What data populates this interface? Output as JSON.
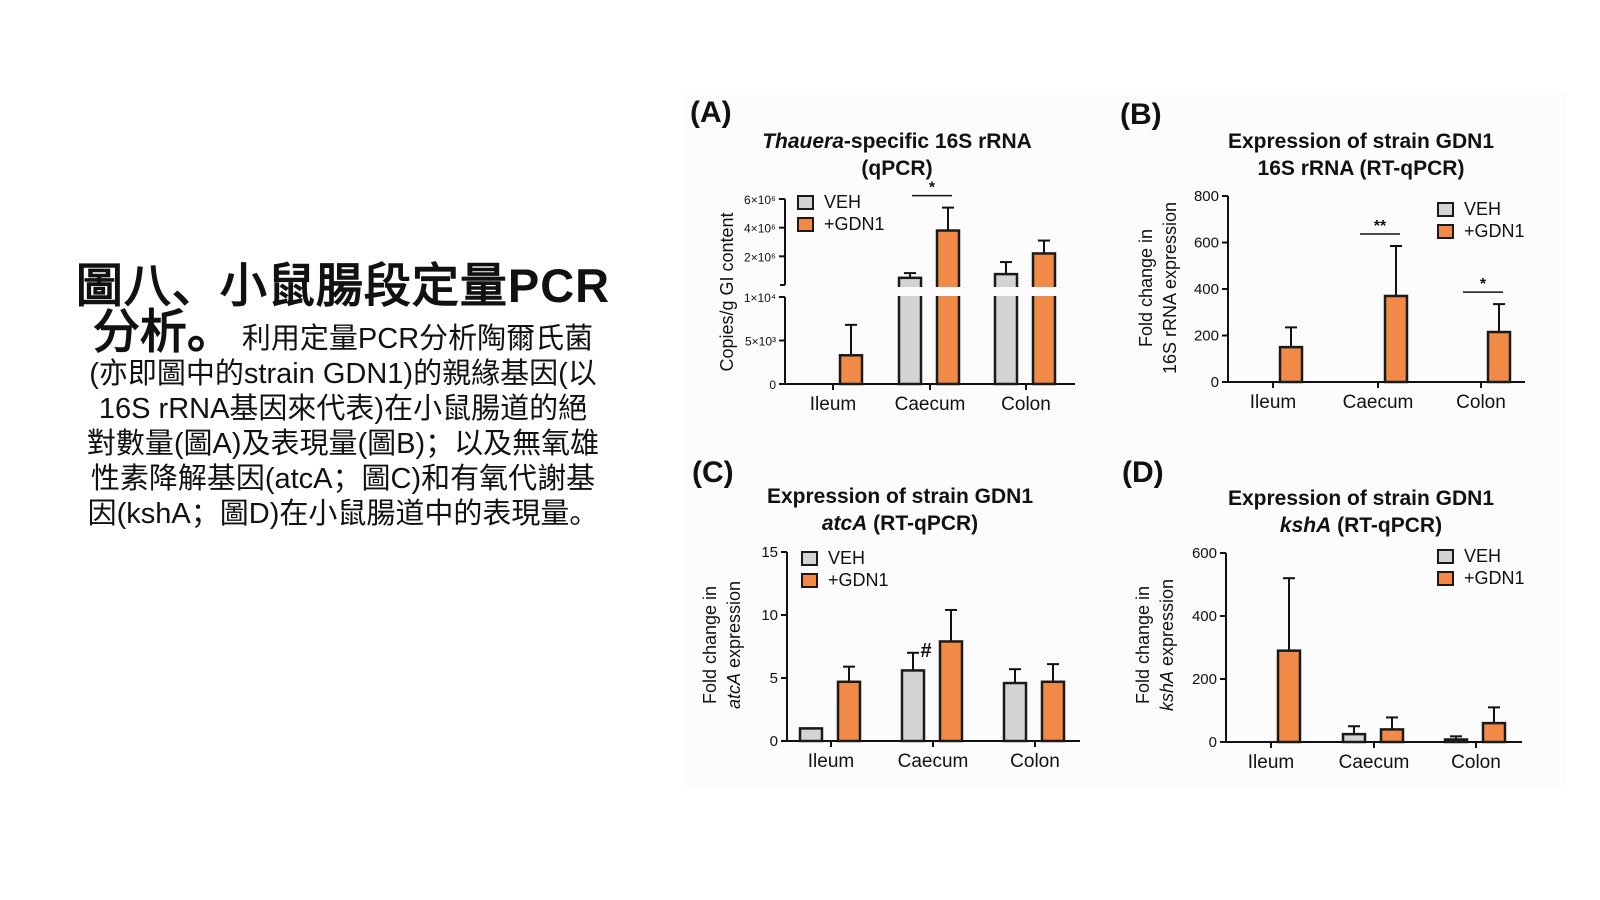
{
  "slide": {
    "title_line": "圖八、小鼠腸段定量PCR",
    "title_line2_bold": "分析。",
    "body_first": "利用定量PCR分析陶爾氏菌",
    "body_lines": [
      "(亦即圖中的strain GDN1)的親緣基因(以",
      "16S rRNA基因來代表)在小鼠腸道的絕",
      "對數量(圖A)及表現量(圖B)；以及無氧雄",
      "性素降解基因(atcA；圖C)和有氧代謝基",
      "因(kshA；圖D)在小鼠腸道中的表現量。"
    ]
  },
  "colors": {
    "veh": "#d4d4d4",
    "gdn1": "#f08a46",
    "outline": "#1a1a1a"
  },
  "chart_data": [
    {
      "panel": "(A)",
      "type": "bar",
      "title": [
        [
          {
            "t": "Thauera",
            "i": true
          },
          {
            "t": "-specific 16S rRNA",
            "i": false
          }
        ],
        [
          {
            "t": "(qPCR)",
            "i": false
          }
        ]
      ],
      "ylabel": [
        [
          {
            "t": "Copies/g GI content",
            "i": false
          }
        ]
      ],
      "categories": [
        "Ileum",
        "Caecum",
        "Colon"
      ],
      "legend": [
        "VEH",
        "+GDN1"
      ],
      "legend_position": "top-left",
      "broken_axis": true,
      "ylim_lower": [
        0,
        10000
      ],
      "ylim_upper": [
        0,
        6000000
      ],
      "yticks_lower": [
        {
          "v": 0,
          "l": "0"
        },
        {
          "v": 5000,
          "l": "5×10³"
        },
        {
          "v": 10000,
          "l": "1×10⁴"
        }
      ],
      "yticks_upper": [
        {
          "v": 2000000,
          "l": "2×10⁶"
        },
        {
          "v": 4000000,
          "l": "4×10⁶"
        },
        {
          "v": 6000000,
          "l": "6×10⁶"
        }
      ],
      "series": [
        {
          "name": "VEH",
          "values": [
            0,
            500000,
            760000
          ],
          "err": [
            0,
            830000,
            1600000
          ]
        },
        {
          "name": "+GDN1",
          "values": [
            3300,
            3800000,
            2200000
          ],
          "err": [
            6800,
            5400000,
            3100000
          ]
        }
      ],
      "annotations": [
        {
          "text": "*",
          "category": "Caecum",
          "type": "bracket"
        }
      ]
    },
    {
      "panel": "(B)",
      "type": "bar",
      "title": [
        [
          {
            "t": "Expression of strain GDN1",
            "i": false
          }
        ],
        [
          {
            "t": "16S rRNA (RT-qPCR)",
            "i": false
          }
        ]
      ],
      "ylabel": [
        [
          {
            "t": "Fold change in",
            "i": false
          }
        ],
        [
          {
            "t": "16S rRNA expression",
            "i": false
          }
        ]
      ],
      "categories": [
        "Ileum",
        "Caecum",
        "Colon"
      ],
      "legend": [
        "VEH",
        "+GDN1"
      ],
      "legend_position": "top-right",
      "ylim": [
        0,
        800
      ],
      "yticks": [
        {
          "v": 0,
          "l": "0"
        },
        {
          "v": 200,
          "l": "200"
        },
        {
          "v": 400,
          "l": "400"
        },
        {
          "v": 600,
          "l": "600"
        },
        {
          "v": 800,
          "l": "800"
        }
      ],
      "series": [
        {
          "name": "VEH",
          "values": [
            0,
            0,
            0
          ],
          "err": [
            0,
            0,
            0
          ]
        },
        {
          "name": "+GDN1",
          "values": [
            150,
            370,
            215
          ],
          "err": [
            235,
            585,
            335
          ]
        }
      ],
      "annotations": [
        {
          "text": "**",
          "category": "Caecum",
          "type": "bracket"
        },
        {
          "text": "*",
          "category": "Colon",
          "type": "bracket"
        }
      ]
    },
    {
      "panel": "(C)",
      "type": "bar",
      "title": [
        [
          {
            "t": "Expression of strain GDN1",
            "i": false
          }
        ],
        [
          {
            "t": "atcA",
            "i": true
          },
          {
            "t": " (RT-qPCR)",
            "i": false
          }
        ]
      ],
      "ylabel": [
        [
          {
            "t": "Fold change in",
            "i": false
          }
        ],
        [
          {
            "t": "atcA",
            "i": true
          },
          {
            "t": " expression",
            "i": false
          }
        ]
      ],
      "categories": [
        "Ileum",
        "Caecum",
        "Colon"
      ],
      "legend": [
        "VEH",
        "+GDN1"
      ],
      "legend_position": "top-left",
      "ylim": [
        0,
        15
      ],
      "yticks": [
        {
          "v": 0,
          "l": "0"
        },
        {
          "v": 5,
          "l": "5"
        },
        {
          "v": 10,
          "l": "10"
        },
        {
          "v": 15,
          "l": "15"
        }
      ],
      "series": [
        {
          "name": "VEH",
          "values": [
            1.0,
            5.6,
            4.6
          ],
          "err": [
            1.0,
            7.0,
            5.7
          ]
        },
        {
          "name": "+GDN1",
          "values": [
            4.7,
            7.9,
            4.7
          ],
          "err": [
            5.9,
            10.4,
            6.1
          ]
        }
      ],
      "annotations": [
        {
          "text": "#",
          "category": "Caecum",
          "type": "mark"
        }
      ]
    },
    {
      "panel": "(D)",
      "type": "bar",
      "title": [
        [
          {
            "t": "Expression of strain GDN1",
            "i": false
          }
        ],
        [
          {
            "t": "kshA",
            "i": true
          },
          {
            "t": " (RT-qPCR)",
            "i": false
          }
        ]
      ],
      "ylabel": [
        [
          {
            "t": "Fold change in",
            "i": false
          }
        ],
        [
          {
            "t": "kshA",
            "i": true
          },
          {
            "t": " expression",
            "i": false
          }
        ]
      ],
      "categories": [
        "Ileum",
        "Caecum",
        "Colon"
      ],
      "legend": [
        "VEH",
        "+GDN1"
      ],
      "legend_position": "top-right",
      "ylim": [
        0,
        600
      ],
      "yticks": [
        {
          "v": 0,
          "l": "0"
        },
        {
          "v": 200,
          "l": "200"
        },
        {
          "v": 400,
          "l": "400"
        },
        {
          "v": 600,
          "l": "600"
        }
      ],
      "series": [
        {
          "name": "VEH",
          "values": [
            0,
            25,
            8
          ],
          "err": [
            0,
            50,
            18
          ]
        },
        {
          "name": "+GDN1",
          "values": [
            290,
            40,
            60
          ],
          "err": [
            520,
            78,
            110
          ]
        }
      ],
      "annotations": []
    }
  ]
}
